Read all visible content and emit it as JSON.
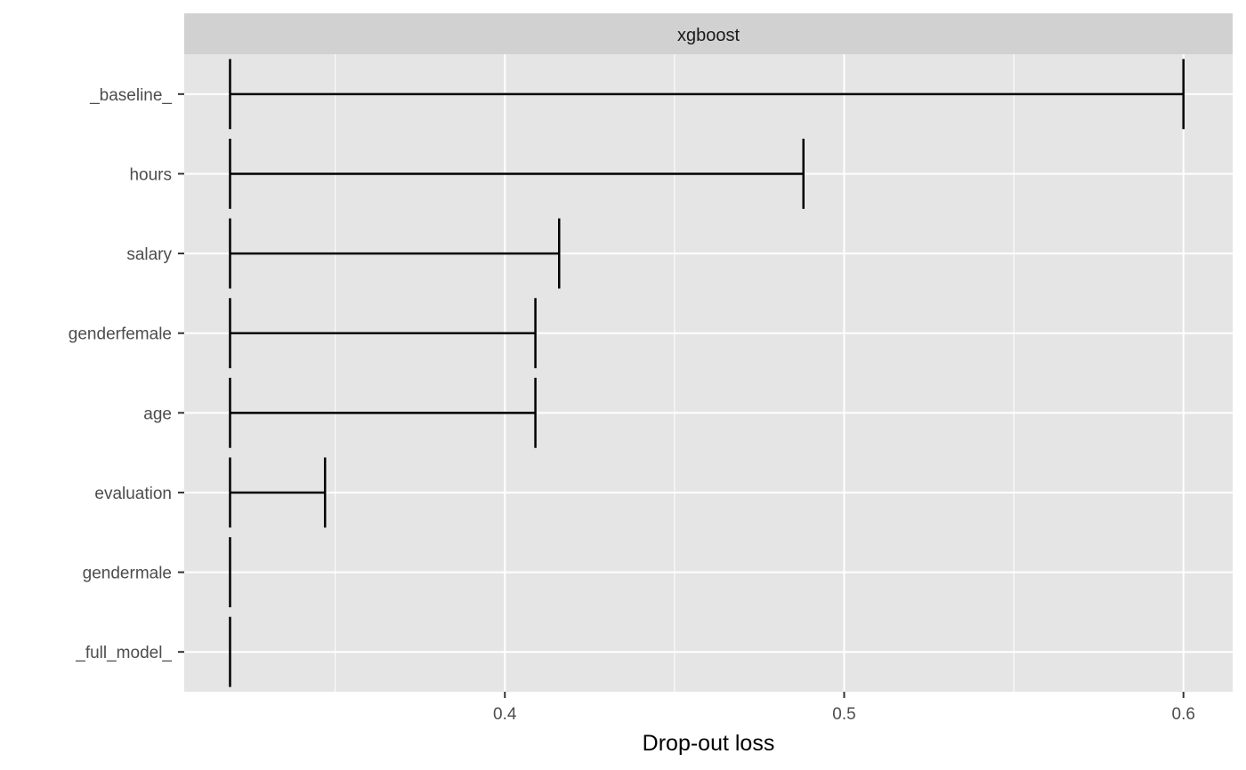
{
  "chart_data": {
    "type": "bar",
    "facet_label": "xgboost",
    "xlabel": "Drop-out loss",
    "ylabel": "",
    "xlim": [
      0.3055,
      0.6145
    ],
    "x_ticks": [
      0.4,
      0.5,
      0.6
    ],
    "x_tick_labels": [
      "0.4",
      "0.5",
      "0.6"
    ],
    "x_minor_ticks": [
      0.35,
      0.45,
      0.55
    ],
    "baseline": 0.319,
    "categories": [
      "_baseline_",
      "hours",
      "salary",
      "genderfemale",
      "age",
      "evaluation",
      "gendermale",
      "_full_model_"
    ],
    "values": [
      0.6,
      0.488,
      0.416,
      0.409,
      0.409,
      0.347,
      0.319,
      0.319
    ],
    "grid": true,
    "legend": "none",
    "colors": {
      "panel_bg": "#e5e5e5",
      "strip_bg": "#d1d1d1",
      "grid": "#ffffff",
      "mark": "#000000",
      "tick_text": "#4d4d4d"
    }
  }
}
